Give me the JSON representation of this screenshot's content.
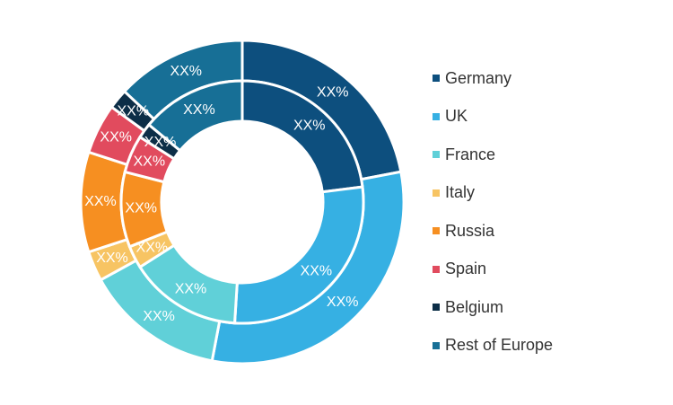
{
  "chart_data": {
    "type": "donut",
    "categories": [
      "Germany",
      "UK",
      "France",
      "Italy",
      "Russia",
      "Spain",
      "Belgium",
      "Rest of Europe"
    ],
    "colors": [
      "#0d4f7e",
      "#36b0e3",
      "#60d0d8",
      "#f7c463",
      "#f68f21",
      "#e14b5e",
      "#0c2e47",
      "#176f96"
    ],
    "series": [
      {
        "values": [
          22,
          31,
          14,
          3,
          10,
          5,
          2,
          13
        ],
        "labels": [
          "XX%",
          "XX%",
          "XX%",
          "XX%",
          "XX%",
          "XX%",
          "XX%",
          "XX%"
        ]
      },
      {
        "values": [
          23,
          28,
          15,
          3,
          10,
          5,
          2,
          14
        ],
        "labels": [
          "XX%",
          "XX%",
          "XX%",
          "XX%",
          "XX%",
          "XX%",
          "XX%",
          "XX%"
        ]
      }
    ],
    "legend_position": "right"
  }
}
